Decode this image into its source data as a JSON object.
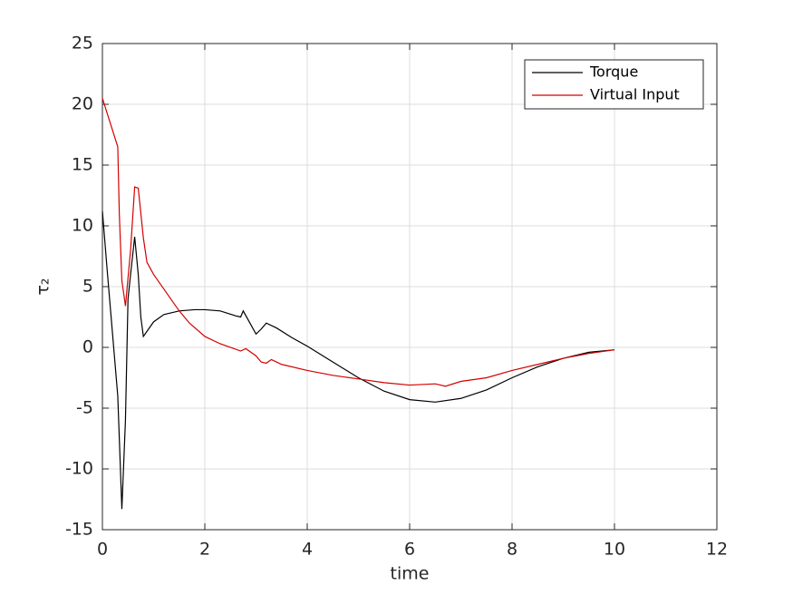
{
  "chart_data": {
    "type": "line",
    "xlabel": "time",
    "ylabel": "τ₂",
    "xlim": [
      0,
      12
    ],
    "xticks": [
      0,
      2,
      4,
      6,
      8,
      10,
      12
    ],
    "ylim": [
      -15,
      25
    ],
    "yticks": [
      -15,
      -10,
      -5,
      0,
      5,
      10,
      15,
      20,
      25
    ],
    "grid": true,
    "legend": "northeast",
    "series": [
      {
        "name": "Torque",
        "color": "#000000",
        "x": [
          0,
          0.1,
          0.2,
          0.3,
          0.38,
          0.45,
          0.5,
          0.55,
          0.63,
          0.7,
          0.75,
          0.8,
          0.9,
          1.0,
          1.2,
          1.5,
          1.8,
          2.0,
          2.3,
          2.6,
          2.7,
          2.75,
          3.0,
          3.1,
          3.2,
          3.4,
          3.7,
          4.0,
          4.5,
          5.0,
          5.5,
          6.0,
          6.5,
          7.0,
          7.5,
          8.0,
          8.5,
          9.0,
          9.5,
          10
        ],
        "values": [
          11.2,
          6,
          1,
          -4,
          -13.3,
          -6,
          4,
          6,
          9.1,
          6,
          2.5,
          0.9,
          1.5,
          2.1,
          2.7,
          3.0,
          3.1,
          3.1,
          3.0,
          2.6,
          2.5,
          3.0,
          1.1,
          1.5,
          2.0,
          1.6,
          0.8,
          0.1,
          -1.2,
          -2.5,
          -3.6,
          -4.3,
          -4.5,
          -4.2,
          -3.5,
          -2.5,
          -1.6,
          -0.9,
          -0.4,
          -0.2
        ]
      },
      {
        "name": "Virtual Input",
        "color": "#d40000",
        "x": [
          0,
          0.15,
          0.3,
          0.33,
          0.38,
          0.45,
          0.55,
          0.63,
          0.7,
          0.8,
          0.87,
          1.0,
          1.2,
          1.5,
          1.7,
          2.0,
          2.3,
          2.7,
          2.8,
          3.0,
          3.1,
          3.2,
          3.3,
          3.5,
          4.0,
          4.5,
          5.0,
          5.5,
          6.0,
          6.5,
          6.7,
          7.0,
          7.5,
          8.0,
          8.5,
          9.0,
          9.5,
          10
        ],
        "values": [
          20.5,
          18.5,
          16.5,
          11,
          5.5,
          3.4,
          8,
          13.2,
          13.1,
          9,
          7,
          6,
          4.8,
          3.0,
          2.0,
          0.9,
          0.3,
          -0.3,
          -0.1,
          -0.7,
          -1.2,
          -1.3,
          -1.0,
          -1.4,
          -1.9,
          -2.3,
          -2.6,
          -2.9,
          -3.1,
          -3.0,
          -3.2,
          -2.8,
          -2.5,
          -1.9,
          -1.4,
          -0.9,
          -0.5,
          -0.2
        ]
      }
    ]
  }
}
